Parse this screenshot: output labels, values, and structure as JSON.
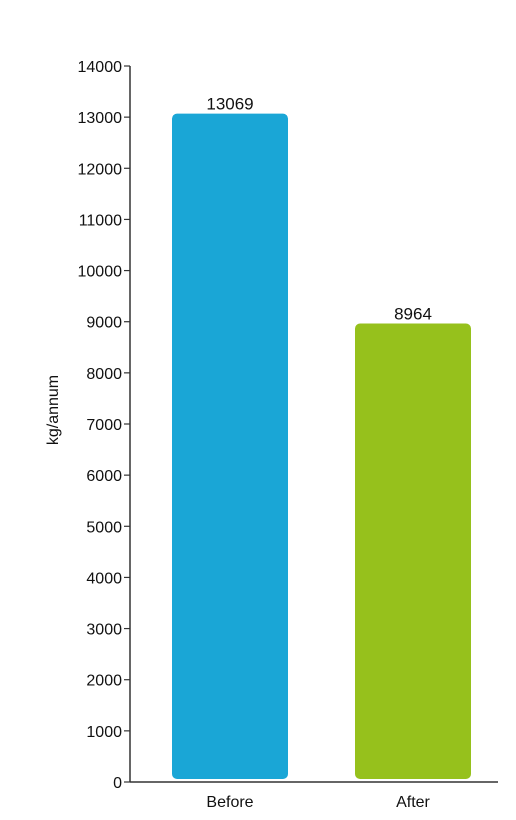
{
  "chart_data": {
    "type": "bar",
    "title": "",
    "xlabel": "",
    "ylabel": "kg/annum",
    "categories": [
      "Before",
      "After"
    ],
    "values": [
      13069,
      8964
    ],
    "data_labels": [
      "13069",
      "8964"
    ],
    "colors": [
      "#1aa6d6",
      "#96c11c"
    ],
    "ylim": [
      0,
      14000
    ],
    "yticks": [
      0,
      1000,
      2000,
      3000,
      4000,
      5000,
      6000,
      7000,
      8000,
      9000,
      10000,
      11000,
      12000,
      13000,
      14000
    ],
    "ytick_labels": [
      "0",
      "1000",
      "2000",
      "3000",
      "4000",
      "5000",
      "6000",
      "7000",
      "8000",
      "9000",
      "10000",
      "11000",
      "12000",
      "13000",
      "14000"
    ],
    "grid": false,
    "legend": "none"
  }
}
